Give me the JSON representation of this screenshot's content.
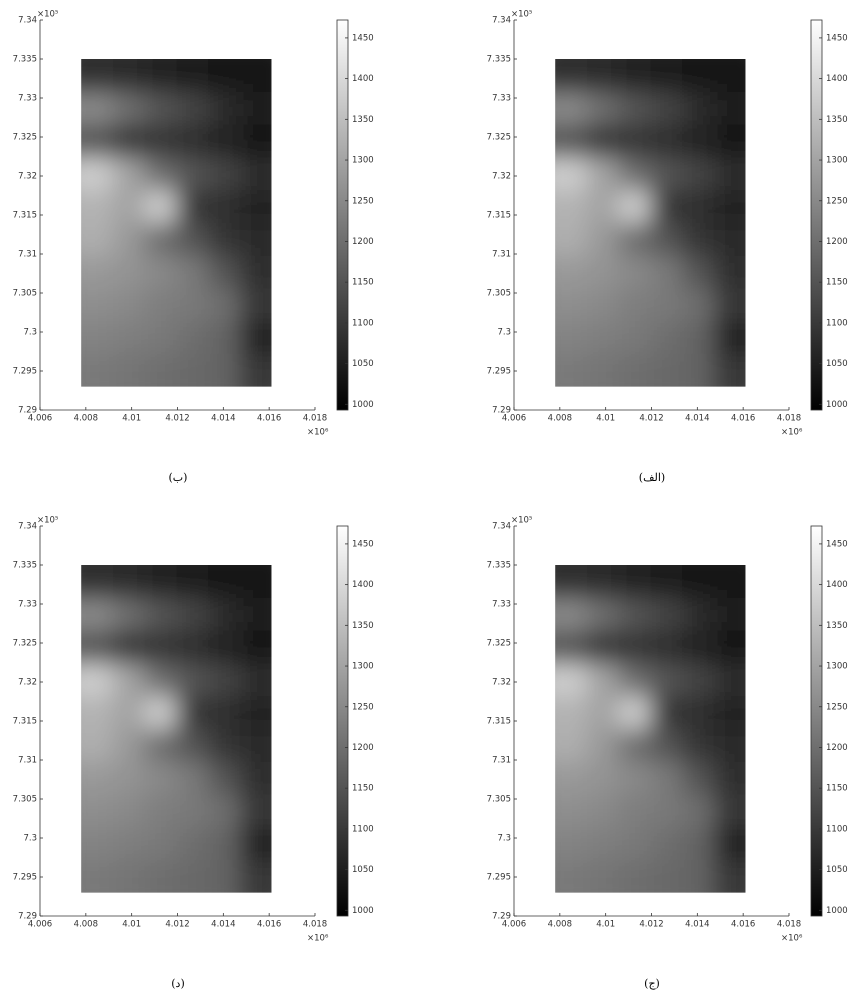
{
  "chart_data": [
    {
      "type": "image",
      "caption": "(ب)",
      "x_exponent": "×10⁶",
      "y_exponent": "×10⁵",
      "xlim": [
        4.006,
        4.018
      ],
      "ylim": [
        7.29,
        7.34
      ],
      "xticks": [
        4.006,
        4.008,
        4.01,
        4.012,
        4.014,
        4.016,
        4.018
      ],
      "yticks": [
        7.29,
        7.295,
        7.3,
        7.305,
        7.31,
        7.315,
        7.32,
        7.325,
        7.33,
        7.335,
        7.34
      ],
      "image_x": [
        4.0078,
        4.0161
      ],
      "image_y": [
        7.293,
        7.335
      ],
      "colormap": "gray",
      "clim": [
        993,
        1472
      ],
      "cticks": [
        1000,
        1050,
        1100,
        1150,
        1200,
        1250,
        1300,
        1350,
        1400,
        1450
      ],
      "z": [
        [
          1080,
          1070,
          1060,
          1050,
          1040,
          1030
        ],
        [
          1250,
          1200,
          1150,
          1120,
          1080,
          1050
        ],
        [
          1150,
          1100,
          1090,
          1080,
          1060,
          1040
        ],
        [
          1380,
          1300,
          1200,
          1150,
          1120,
          1080
        ],
        [
          1330,
          1300,
          1380,
          1100,
          1080,
          1060
        ],
        [
          1320,
          1280,
          1200,
          1150,
          1090,
          1070
        ],
        [
          1280,
          1270,
          1250,
          1220,
          1150,
          1080
        ],
        [
          1260,
          1250,
          1230,
          1220,
          1200,
          1100
        ],
        [
          1240,
          1230,
          1220,
          1200,
          1180,
          1060
        ],
        [
          1220,
          1210,
          1200,
          1190,
          1180,
          1100
        ]
      ]
    },
    {
      "type": "image",
      "caption": "(الف)",
      "x_exponent": "×10⁶",
      "y_exponent": "×10⁵",
      "xlim": [
        4.006,
        4.018
      ],
      "ylim": [
        7.29,
        7.34
      ],
      "xticks": [
        4.006,
        4.008,
        4.01,
        4.012,
        4.014,
        4.016,
        4.018
      ],
      "yticks": [
        7.29,
        7.295,
        7.3,
        7.305,
        7.31,
        7.315,
        7.32,
        7.325,
        7.33,
        7.335,
        7.34
      ],
      "image_x": [
        4.0078,
        4.0161
      ],
      "image_y": [
        7.293,
        7.335
      ],
      "colormap": "gray",
      "clim": [
        993,
        1472
      ],
      "cticks": [
        1000,
        1050,
        1100,
        1150,
        1200,
        1250,
        1300,
        1350,
        1400,
        1450
      ],
      "z": [
        [
          1080,
          1070,
          1060,
          1050,
          1040,
          1030
        ],
        [
          1250,
          1200,
          1150,
          1120,
          1080,
          1050
        ],
        [
          1150,
          1100,
          1090,
          1080,
          1060,
          1040
        ],
        [
          1380,
          1300,
          1200,
          1150,
          1120,
          1080
        ],
        [
          1330,
          1300,
          1380,
          1100,
          1080,
          1060
        ],
        [
          1320,
          1280,
          1200,
          1150,
          1090,
          1070
        ],
        [
          1280,
          1270,
          1250,
          1220,
          1150,
          1080
        ],
        [
          1260,
          1250,
          1230,
          1220,
          1200,
          1100
        ],
        [
          1240,
          1230,
          1220,
          1200,
          1180,
          1060
        ],
        [
          1220,
          1210,
          1200,
          1190,
          1180,
          1100
        ]
      ]
    },
    {
      "type": "image",
      "caption": "(د)",
      "x_exponent": "×10⁶",
      "y_exponent": "×10⁵",
      "xlim": [
        4.006,
        4.018
      ],
      "ylim": [
        7.29,
        7.34
      ],
      "xticks": [
        4.006,
        4.008,
        4.01,
        4.012,
        4.014,
        4.016,
        4.018
      ],
      "yticks": [
        7.29,
        7.295,
        7.3,
        7.305,
        7.31,
        7.315,
        7.32,
        7.325,
        7.33,
        7.335,
        7.34
      ],
      "image_x": [
        4.0078,
        4.0161
      ],
      "image_y": [
        7.293,
        7.335
      ],
      "colormap": "gray",
      "clim": [
        993,
        1472
      ],
      "cticks": [
        1000,
        1050,
        1100,
        1150,
        1200,
        1250,
        1300,
        1350,
        1400,
        1450
      ],
      "z": [
        [
          1080,
          1070,
          1060,
          1050,
          1040,
          1030
        ],
        [
          1250,
          1200,
          1150,
          1120,
          1080,
          1050
        ],
        [
          1150,
          1100,
          1090,
          1080,
          1060,
          1040
        ],
        [
          1380,
          1300,
          1200,
          1150,
          1120,
          1080
        ],
        [
          1330,
          1300,
          1380,
          1100,
          1080,
          1060
        ],
        [
          1320,
          1280,
          1200,
          1150,
          1090,
          1070
        ],
        [
          1280,
          1270,
          1250,
          1220,
          1150,
          1080
        ],
        [
          1260,
          1250,
          1230,
          1220,
          1200,
          1100
        ],
        [
          1240,
          1230,
          1220,
          1200,
          1180,
          1060
        ],
        [
          1220,
          1210,
          1200,
          1190,
          1180,
          1100
        ]
      ]
    },
    {
      "type": "image",
      "caption": "(ج)",
      "x_exponent": "×10⁶",
      "y_exponent": "×10⁵",
      "xlim": [
        4.006,
        4.018
      ],
      "ylim": [
        7.29,
        7.34
      ],
      "xticks": [
        4.006,
        4.008,
        4.01,
        4.012,
        4.014,
        4.016,
        4.018
      ],
      "yticks": [
        7.29,
        7.295,
        7.3,
        7.305,
        7.31,
        7.315,
        7.32,
        7.325,
        7.33,
        7.335,
        7.34
      ],
      "image_x": [
        4.0078,
        4.0161
      ],
      "image_y": [
        7.293,
        7.335
      ],
      "colormap": "gray",
      "clim": [
        993,
        1472
      ],
      "cticks": [
        1000,
        1050,
        1100,
        1150,
        1200,
        1250,
        1300,
        1350,
        1400,
        1450
      ],
      "z": [
        [
          1080,
          1070,
          1060,
          1050,
          1040,
          1030
        ],
        [
          1250,
          1200,
          1150,
          1120,
          1080,
          1050
        ],
        [
          1150,
          1100,
          1090,
          1080,
          1060,
          1040
        ],
        [
          1380,
          1300,
          1200,
          1150,
          1120,
          1080
        ],
        [
          1330,
          1300,
          1380,
          1100,
          1080,
          1060
        ],
        [
          1320,
          1280,
          1200,
          1150,
          1090,
          1070
        ],
        [
          1280,
          1270,
          1250,
          1220,
          1150,
          1080
        ],
        [
          1260,
          1250,
          1230,
          1220,
          1200,
          1100
        ],
        [
          1240,
          1230,
          1220,
          1200,
          1180,
          1060
        ],
        [
          1220,
          1210,
          1200,
          1190,
          1180,
          1100
        ]
      ]
    }
  ]
}
